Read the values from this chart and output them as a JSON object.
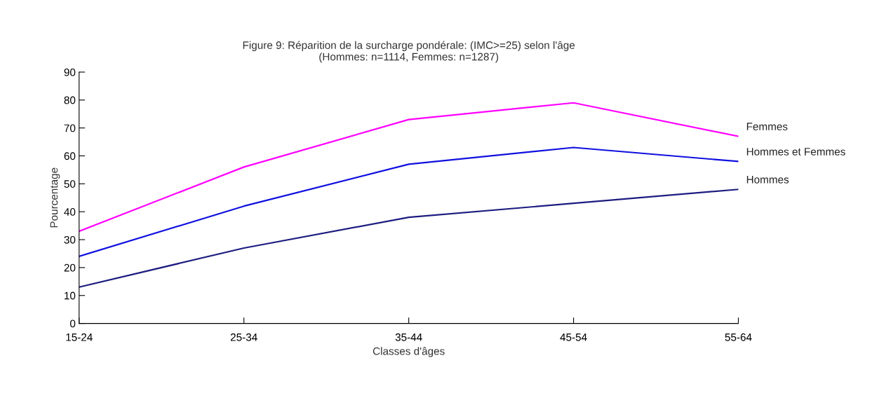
{
  "chart_data": {
    "type": "line",
    "title": "Figure 9: Réparition de la surcharge pondérale: (IMC>=25) selon l'âge\n(Hommes: n=1114, Femmes: n=1287)",
    "xlabel": "Classes d'âges",
    "ylabel": "Pourcentage",
    "categories": [
      "15-24",
      "25-34",
      "35-44",
      "45-54",
      "55-64"
    ],
    "series": [
      {
        "name": "Femmes",
        "color": "#ff00ff",
        "values": [
          33,
          56,
          73,
          79,
          67
        ]
      },
      {
        "name": "Hommes et Femmes",
        "color": "#1010e0",
        "values": [
          24,
          42,
          57,
          63,
          58
        ]
      },
      {
        "name": "Hommes",
        "color": "#1c1c80",
        "values": [
          13,
          27,
          38,
          43,
          48
        ]
      }
    ],
    "ylim": [
      0,
      90
    ],
    "yticks": [
      0,
      10,
      20,
      30,
      40,
      50,
      60,
      70,
      80,
      90
    ],
    "grid": false,
    "legend": false,
    "marker": "none",
    "line_style": "solid"
  }
}
